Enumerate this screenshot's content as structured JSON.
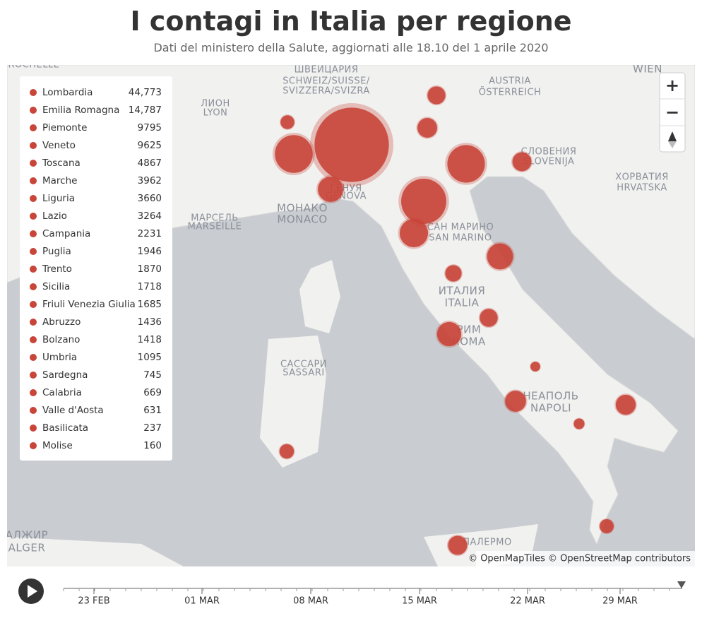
{
  "header": {
    "title": "I contagi in Italia per regione",
    "subtitle": "Dati del ministero della Salute, aggiornati alle 18.10 del 1 aprile 2020"
  },
  "legend": {
    "rows": [
      {
        "region": "Lombardia",
        "cases": {
          "value": 44773,
          "label": "44,773"
        }
      },
      {
        "region": "Emilia Romagna",
        "cases": {
          "value": 14787,
          "label": "14,787"
        }
      },
      {
        "region": "Piemonte",
        "cases": 9795
      },
      {
        "region": "Veneto",
        "cases": 9625
      },
      {
        "region": "Toscana",
        "cases": 4867
      },
      {
        "region": "Marche",
        "cases": 3962
      },
      {
        "region": "Liguria",
        "cases": 3660
      },
      {
        "region": "Lazio",
        "cases": 3264
      },
      {
        "region": "Campania",
        "cases": 2231
      },
      {
        "region": "Puglia",
        "cases": 1946
      },
      {
        "region": "Trento",
        "cases": 1870
      },
      {
        "region": "Sicilia",
        "cases": 1718
      },
      {
        "region": "Friuli Venezia Giulia",
        "cases": 1685
      },
      {
        "region": "Abruzzo",
        "cases": 1436
      },
      {
        "region": "Bolzano",
        "cases": 1418
      },
      {
        "region": "Umbria",
        "cases": 1095
      },
      {
        "region": "Sardegna",
        "cases": 745
      },
      {
        "region": "Calabria",
        "cases": 669
      },
      {
        "region": "Valle d'Aosta",
        "cases": 631
      },
      {
        "region": "Basilicata",
        "cases": 237
      },
      {
        "region": "Molise",
        "cases": 160
      }
    ]
  },
  "map": {
    "labels": [
      "ШВЕЙЦАРИЯ",
      "SCHWEIZ/SUISSE/",
      "SVIZZERA/SVIZRA",
      "AUSTRIA",
      "ÖSTERREICH",
      "WIEN",
      "СЛОВЕНИЯ",
      "SLOVENIJA",
      "ХОРВАТИЯ",
      "HRVATSKA",
      "ЛИОН",
      "LYON",
      "МАРСЕЛЬ",
      "MARSEILLE",
      "МОНАКО",
      "MONACO",
      "ГЕНУЯ",
      "GENOVA",
      "САН МАРИНО",
      "SAN MARINO",
      "ИТАЛИЯ",
      "ITALIA",
      "РИМ",
      "ROMA",
      "НЕАПОЛЬ",
      "NAPOLI",
      "САССАРИ",
      "SASSARI",
      "ПАЛЕРМО",
      "АЛЖИР",
      "ALGER",
      "ROCHELLE"
    ],
    "attribution": "© OpenMapTiles © OpenStreetMap contributors"
  },
  "controls": {
    "zoom_in": "+",
    "zoom_out": "−"
  },
  "timeline": {
    "labels": [
      "23 FEB",
      "01 MAR",
      "08 MAR",
      "15 MAR",
      "22 MAR",
      "29 MAR"
    ]
  }
}
